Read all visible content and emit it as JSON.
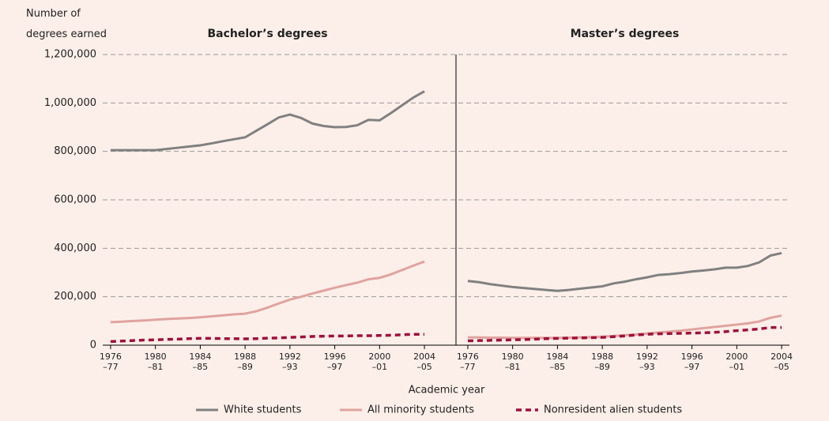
{
  "chart_data": [
    {
      "type": "line",
      "title": "Bachelor’s degrees",
      "ylabel": "Number of\ndegrees earned",
      "xlabel": "Academic year",
      "x": [
        1976,
        1977,
        1978,
        1979,
        1980,
        1981,
        1982,
        1983,
        1984,
        1985,
        1986,
        1987,
        1988,
        1989,
        1990,
        1991,
        1992,
        1993,
        1994,
        1995,
        1996,
        1997,
        1998,
        1999,
        2000,
        2001,
        2002,
        2003,
        2004
      ],
      "xlim": [
        1975.3,
        2004.7
      ],
      "xticks": [
        {
          "value": 1976,
          "label": "1976\n–77"
        },
        {
          "value": 1980,
          "label": "1980\n–81"
        },
        {
          "value": 1984,
          "label": "1984\n–85"
        },
        {
          "value": 1988,
          "label": "1988\n–89"
        },
        {
          "value": 1992,
          "label": "1992\n–93"
        },
        {
          "value": 1996,
          "label": "1996\n–97"
        },
        {
          "value": 2000,
          "label": "2000\n–01"
        },
        {
          "value": 2004,
          "label": "2004\n–05"
        }
      ],
      "ylim": [
        0,
        1200000
      ],
      "yticks": [
        0,
        {
          "value": 200000,
          "label": "200,000"
        },
        {
          "value": 400000,
          "label": "400,000"
        },
        {
          "value": 600000,
          "label": "600,000"
        },
        {
          "value": 800000,
          "label": "800,000"
        },
        {
          "value": 1000000,
          "label": "1,000,000"
        },
        {
          "value": 1200000,
          "label": "1,200,000"
        }
      ],
      "grid": true,
      "series": [
        {
          "name": "White students",
          "color": "#808080",
          "dashed": false,
          "values": [
            805000,
            805000,
            805000,
            805000,
            805000,
            810000,
            815000,
            820000,
            825000,
            833000,
            842000,
            850000,
            858000,
            885000,
            912000,
            940000,
            952000,
            938000,
            915000,
            905000,
            900000,
            901000,
            908000,
            930000,
            928000,
            958000,
            990000,
            1022000,
            1048000
          ]
        },
        {
          "name": "All minority students",
          "color": "#e0a39f",
          "dashed": false,
          "values": [
            95000,
            97000,
            100000,
            102000,
            105000,
            108000,
            110000,
            112000,
            115000,
            119000,
            123000,
            127000,
            130000,
            140000,
            155000,
            172000,
            188000,
            200000,
            213000,
            225000,
            237000,
            248000,
            258000,
            272000,
            278000,
            292000,
            310000,
            328000,
            345000
          ]
        },
        {
          "name": "Nonresident alien students",
          "color": "#a0103a",
          "dashed": true,
          "values": [
            15000,
            17000,
            19000,
            21000,
            22000,
            24000,
            25000,
            27000,
            28000,
            28000,
            27000,
            27000,
            26000,
            27000,
            29000,
            30000,
            32000,
            34000,
            36000,
            37000,
            38000,
            38000,
            39000,
            39000,
            40000,
            41000,
            43000,
            45000,
            45000
          ]
        }
      ]
    },
    {
      "type": "line",
      "title": "Master’s degrees",
      "x": [
        1976,
        1977,
        1978,
        1979,
        1980,
        1981,
        1982,
        1983,
        1984,
        1985,
        1986,
        1987,
        1988,
        1989,
        1990,
        1991,
        1992,
        1993,
        1994,
        1995,
        1996,
        1997,
        1998,
        1999,
        2000,
        2001,
        2002,
        2003,
        2004
      ],
      "xlim": [
        1975.3,
        2004.7
      ],
      "xticks": [
        {
          "value": 1976,
          "label": "1976\n–77"
        },
        {
          "value": 1980,
          "label": "1980\n–81"
        },
        {
          "value": 1984,
          "label": "1984\n–85"
        },
        {
          "value": 1988,
          "label": "1988\n–89"
        },
        {
          "value": 1992,
          "label": "1992\n–93"
        },
        {
          "value": 1996,
          "label": "1996\n–97"
        },
        {
          "value": 2000,
          "label": "2000\n–01"
        },
        {
          "value": 2004,
          "label": "2004\n–05"
        }
      ],
      "ylim": [
        0,
        1200000
      ],
      "series": [
        {
          "name": "White students",
          "color": "#808080",
          "dashed": false,
          "values": [
            265000,
            260000,
            252000,
            246000,
            240000,
            236000,
            232000,
            228000,
            224000,
            228000,
            233000,
            238000,
            243000,
            255000,
            262000,
            272000,
            280000,
            290000,
            293000,
            298000,
            304000,
            308000,
            313000,
            320000,
            320000,
            327000,
            342000,
            370000,
            380000
          ]
        },
        {
          "name": "All minority students",
          "color": "#e0a39f",
          "dashed": false,
          "values": [
            32000,
            32000,
            31000,
            31000,
            30000,
            30000,
            30000,
            30000,
            30000,
            31000,
            32000,
            33000,
            35000,
            38000,
            41000,
            44000,
            48000,
            52000,
            56000,
            60000,
            65000,
            70000,
            75000,
            80000,
            85000,
            90000,
            98000,
            113000,
            122000
          ]
        },
        {
          "name": "Nonresident alien students",
          "color": "#a0103a",
          "dashed": true,
          "values": [
            18000,
            19000,
            20000,
            21000,
            22000,
            23000,
            25000,
            27000,
            28000,
            29000,
            30000,
            31000,
            32000,
            35000,
            38000,
            42000,
            45000,
            47000,
            48000,
            49000,
            50000,
            51000,
            53000,
            56000,
            60000,
            63000,
            67000,
            73000,
            73000
          ]
        }
      ]
    }
  ]
}
